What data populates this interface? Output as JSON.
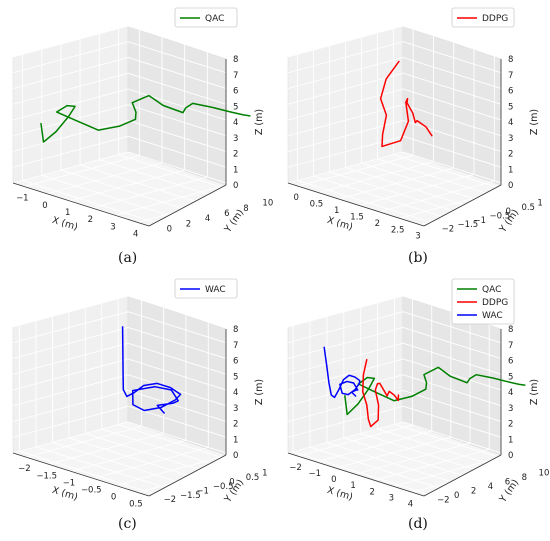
{
  "chart_data": [
    {
      "id": "a",
      "type": "line3d",
      "caption": "(a)",
      "xlabel": "X (m)",
      "ylabel": "Y (m)",
      "zlabel": "Z (m)",
      "xlim": [
        -1.5,
        4.5
      ],
      "ylim": [
        -1,
        11
      ],
      "zlim": [
        0,
        8
      ],
      "xticks": [
        -1,
        0,
        1,
        2,
        3,
        4
      ],
      "yticks": [
        0,
        2,
        4,
        6,
        8,
        10
      ],
      "zticks": [
        0,
        1,
        2,
        3,
        4,
        5,
        6,
        7,
        8
      ],
      "grid": true,
      "legend_position": "top-right",
      "series": [
        {
          "name": "QAC",
          "color": "#008000",
          "x": [
            -0.9,
            -1.0,
            -0.7,
            -0.4,
            -0.2,
            -0.3,
            -0.5,
            0.2,
            1.0,
            1.6,
            2.0,
            1.6,
            0.8,
            1.2,
            2.0,
            2.7,
            2.4,
            2.2,
            2.9,
            3.6,
            4.1,
            4.3
          ],
          "y": [
            0.5,
            1.0,
            1.6,
            2.2,
            2.4,
            1.8,
            1.2,
            1.6,
            2.0,
            2.8,
            3.5,
            4.5,
            6.0,
            6.8,
            6.4,
            6.8,
            7.8,
            9.0,
            9.4,
            9.6,
            9.8,
            10.0
          ],
          "z": [
            3.8,
            2.5,
            3.2,
            4.2,
            4.9,
            5.0,
            4.6,
            4.3,
            4.0,
            4.4,
            4.9,
            5.0,
            5.0,
            5.5,
            5.3,
            5.1,
            5.1,
            5.1,
            5.1,
            5.1,
            5.1,
            5.1
          ]
        }
      ]
    },
    {
      "id": "b",
      "type": "line3d",
      "caption": "(b)",
      "xlabel": "X (m)",
      "ylabel": "Y (m)",
      "zlabel": "Z (m)",
      "xlim": [
        -0.25,
        3.1
      ],
      "ylim": [
        -2.3,
        1.3
      ],
      "zlim": [
        0,
        8
      ],
      "xticks": [
        0.0,
        0.5,
        1.0,
        1.5,
        2.0,
        2.5,
        3.0
      ],
      "yticks": [
        -2.0,
        -1.5,
        -1.0,
        -0.5,
        0.0,
        0.5,
        1.0
      ],
      "zticks": [
        0,
        1,
        2,
        3,
        4,
        5,
        6,
        7,
        8
      ],
      "grid": true,
      "legend_position": "top-right",
      "series": [
        {
          "name": "DDPG",
          "color": "#ff0000",
          "x": [
            0.2,
            0.2,
            0.3,
            0.6,
            0.9,
            1.2,
            1.5,
            1.3,
            1.0,
            1.2,
            1.5,
            1.8,
            2.1,
            2.3,
            2.6,
            2.9,
            3.0
          ],
          "y": [
            0.6,
            0.2,
            -0.1,
            -0.3,
            -0.8,
            -1.2,
            -1.0,
            -0.5,
            -0.2,
            -0.4,
            -0.8,
            -1.0,
            -1.3,
            -1.5,
            -1.6,
            -1.8,
            -2.0
          ],
          "z": [
            6.5,
            5.6,
            4.6,
            3.9,
            3.2,
            2.9,
            3.4,
            4.2,
            5.0,
            5.5,
            5.7,
            5.4,
            5.2,
            5.6,
            5.5,
            5.3,
            5.7
          ]
        }
      ]
    },
    {
      "id": "c",
      "type": "line3d",
      "caption": "(c)",
      "xlabel": "X (m)",
      "ylabel": "Y (m)",
      "zlabel": "Z (m)",
      "xlim": [
        -2.3,
        0.75
      ],
      "ylim": [
        -2.2,
        1.3
      ],
      "zlim": [
        0,
        8
      ],
      "xticks": [
        -2.0,
        -1.5,
        -1.0,
        -0.5,
        0.0,
        0.5
      ],
      "yticks": [
        -2.0,
        -1.5,
        -1.0,
        -0.5,
        0.0,
        0.5,
        1.0
      ],
      "zticks": [
        0,
        1,
        2,
        3,
        4,
        5,
        6,
        7,
        8
      ],
      "grid": true,
      "legend_position": "top-right",
      "series": [
        {
          "name": "WAC",
          "color": "#0000ff",
          "x": [
            -2.2,
            -1.9,
            -1.6,
            -1.3,
            -1.0,
            -0.7,
            -0.4,
            -0.1,
            0.2,
            0.5,
            0.6,
            0.5,
            0.2,
            -0.2,
            -0.5,
            -0.3,
            0.0,
            0.3,
            0.4,
            0.2,
            0.5
          ],
          "y": [
            1.0,
            0.6,
            0.2,
            -0.2,
            -0.5,
            -0.7,
            -0.8,
            -0.8,
            -0.8,
            -0.9,
            -1.2,
            -1.5,
            -1.6,
            -1.4,
            -1.0,
            -0.6,
            -0.5,
            -0.7,
            -1.0,
            -1.2,
            -1.4
          ],
          "z": [
            6.3,
            5.4,
            4.4,
            3.8,
            3.8,
            4.4,
            5.2,
            5.6,
            5.6,
            5.5,
            5.4,
            5.0,
            4.6,
            4.5,
            4.9,
            5.1,
            5.1,
            4.8,
            4.9,
            4.7,
            4.6
          ]
        }
      ]
    },
    {
      "id": "d",
      "type": "line3d",
      "caption": "(d)",
      "xlabel": "X (m)",
      "ylabel": "Y (m)",
      "zlabel": "Z (m)",
      "xlim": [
        -2.5,
        4.6
      ],
      "ylim": [
        -2.6,
        11
      ],
      "zlim": [
        0,
        8
      ],
      "xticks": [
        -2,
        -1,
        0,
        1,
        2,
        3,
        4
      ],
      "yticks": [
        -2,
        0,
        2,
        4,
        6,
        8,
        10
      ],
      "zticks": [
        0,
        1,
        2,
        3,
        4,
        5,
        6,
        7,
        8
      ],
      "grid": true,
      "legend_position": "top-right",
      "series": [
        {
          "name": "QAC",
          "color": "#008000",
          "x": [
            -0.9,
            -1.0,
            -0.7,
            -0.4,
            -0.2,
            -0.3,
            -0.5,
            0.2,
            1.0,
            1.6,
            2.0,
            1.6,
            0.8,
            1.2,
            2.0,
            2.7,
            2.4,
            2.2,
            2.9,
            3.6,
            4.1,
            4.3
          ],
          "y": [
            0.5,
            1.0,
            1.6,
            2.2,
            2.4,
            1.8,
            1.2,
            1.6,
            2.0,
            2.8,
            3.5,
            4.5,
            6.0,
            6.8,
            6.4,
            6.8,
            7.8,
            9.0,
            9.4,
            9.6,
            9.8,
            10.0
          ],
          "z": [
            3.8,
            2.5,
            3.2,
            4.2,
            4.9,
            5.0,
            4.6,
            4.3,
            4.0,
            4.4,
            4.9,
            5.0,
            5.0,
            5.5,
            5.3,
            5.1,
            5.1,
            5.1,
            5.1,
            5.1,
            5.1,
            5.1
          ]
        },
        {
          "name": "DDPG",
          "color": "#ff0000",
          "x": [
            0.2,
            0.2,
            0.3,
            0.6,
            0.9,
            1.2,
            1.5,
            1.3,
            1.0,
            1.2,
            1.5,
            1.8,
            2.1,
            2.3,
            2.6,
            2.9,
            3.0
          ],
          "y": [
            0.6,
            0.2,
            -0.1,
            -0.3,
            -0.8,
            -1.2,
            -1.0,
            -0.5,
            -0.2,
            -0.4,
            -0.8,
            -1.0,
            -1.3,
            -1.5,
            -1.6,
            -1.8,
            -2.0
          ],
          "z": [
            6.5,
            5.6,
            4.6,
            3.9,
            3.2,
            2.9,
            3.4,
            4.2,
            5.0,
            5.5,
            5.7,
            5.4,
            5.2,
            5.6,
            5.5,
            5.3,
            5.7
          ]
        },
        {
          "name": "WAC",
          "color": "#0000ff",
          "x": [
            -2.2,
            -1.9,
            -1.6,
            -1.3,
            -1.0,
            -0.7,
            -0.4,
            -0.1,
            0.2,
            0.5,
            0.6,
            0.5,
            0.2,
            -0.2,
            -0.5,
            -0.3,
            0.0,
            0.3,
            0.4,
            0.2,
            0.5
          ],
          "y": [
            1.0,
            0.6,
            0.2,
            -0.2,
            -0.5,
            -0.7,
            -0.8,
            -0.8,
            -0.8,
            -0.9,
            -1.2,
            -1.5,
            -1.6,
            -1.4,
            -1.0,
            -0.6,
            -0.5,
            -0.7,
            -1.0,
            -1.2,
            -1.4
          ],
          "z": [
            6.3,
            5.4,
            4.4,
            3.8,
            3.8,
            4.4,
            5.2,
            5.6,
            5.6,
            5.5,
            5.4,
            5.0,
            4.6,
            4.5,
            4.9,
            5.1,
            5.1,
            4.8,
            4.9,
            4.7,
            4.6
          ]
        }
      ]
    }
  ]
}
